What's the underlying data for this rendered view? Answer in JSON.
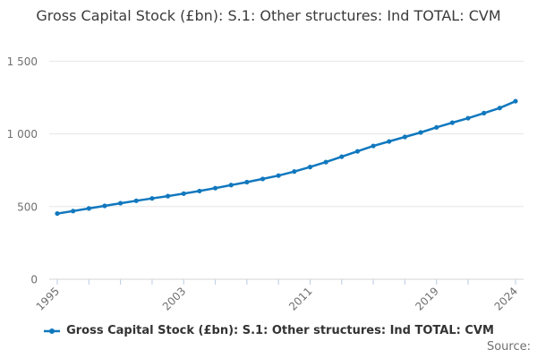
{
  "chart_data": {
    "type": "line",
    "title": "Gross Capital Stock (£bn): S.1: Other structures: Ind TOTAL: CVM",
    "xlabel": "",
    "ylabel": "",
    "x": [
      1995,
      1996,
      1997,
      1998,
      1999,
      2000,
      2001,
      2002,
      2003,
      2004,
      2005,
      2006,
      2007,
      2008,
      2009,
      2010,
      2011,
      2012,
      2013,
      2014,
      2015,
      2016,
      2017,
      2018,
      2019,
      2020,
      2021,
      2022,
      2023,
      2024
    ],
    "series": [
      {
        "name": "Gross Capital Stock (£bn): S.1: Other structures: Ind TOTAL: CVM",
        "values": [
          452,
          469,
          487,
          505,
          523,
          540,
          556,
          572,
          589,
          607,
          627,
          648,
          668,
          690,
          713,
          741,
          772,
          806,
          843,
          880,
          917,
          948,
          979,
          1010,
          1045,
          1077,
          1108,
          1143,
          1178,
          1225
        ]
      }
    ],
    "xlim": [
      1995,
      2024
    ],
    "ylim": [
      0,
      1500
    ],
    "yticks": [
      0,
      500,
      1000,
      1500
    ],
    "ytick_labels": [
      "0",
      "500",
      "1 000",
      "1 500"
    ],
    "xticks": [
      1995,
      1997,
      1999,
      2001,
      2003,
      2005,
      2007,
      2009,
      2011,
      2013,
      2015,
      2017,
      2019,
      2021,
      2024
    ],
    "xtick_labels": {
      "1995": "1995",
      "2003": "2003",
      "2011": "2011",
      "2019": "2019",
      "2024": "2024"
    },
    "grid": "horizontal",
    "legend_position": "bottom"
  },
  "legend": {
    "label": "Gross Capital Stock (£bn): S.1: Other structures: Ind TOTAL: CVM"
  },
  "footer": {
    "source_label": "Source:"
  },
  "colors": {
    "line": "#1178be",
    "marker": "#1178be",
    "gridline": "#e6e6e6",
    "axis_line": "#d6d6d6",
    "tick_mark": "#c6d3e6",
    "tick_label": "#6f6f6f",
    "title_text": "#3b3b3b",
    "legend_text": "#333333",
    "source_text": "#707070",
    "background": "#ffffff"
  }
}
